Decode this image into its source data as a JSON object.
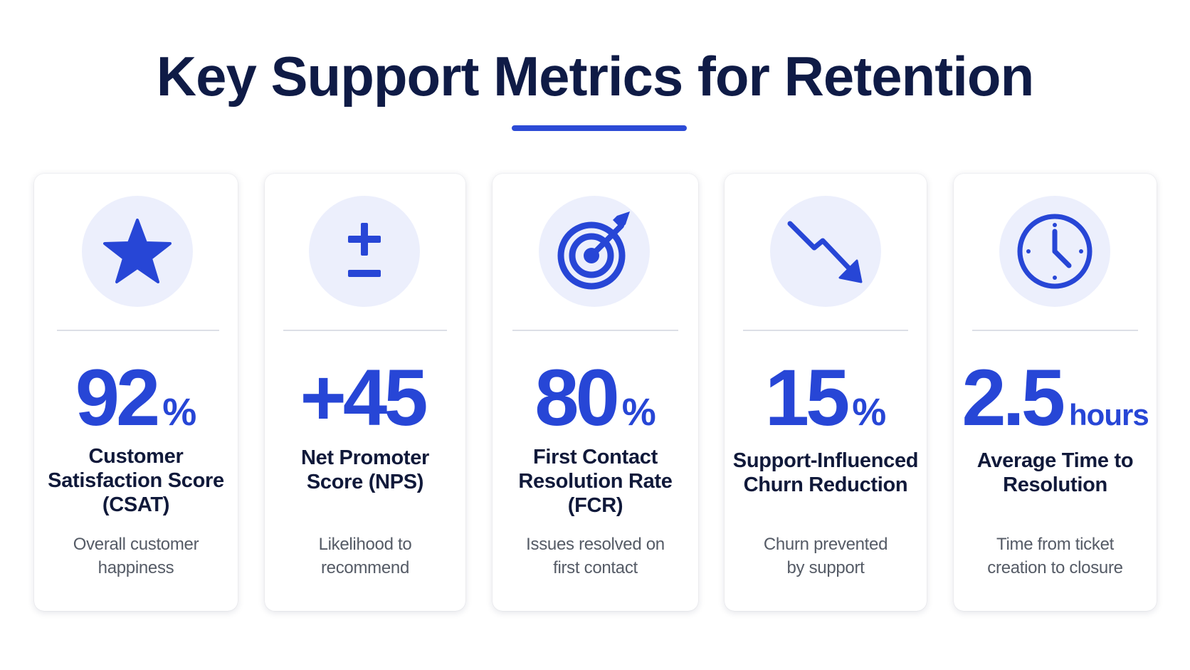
{
  "title": "Key Support Metrics for Retention",
  "colors": {
    "title": "#0f1b46",
    "accent": "#2746d6",
    "icon_bg": "#eceffc",
    "label": "#10193a",
    "description": "#555b66"
  },
  "cards": [
    {
      "icon": "star-icon",
      "value": "92",
      "unit": "%",
      "label": "Customer Satisfaction Score (CSAT)",
      "description": "Overall customer happiness"
    },
    {
      "icon": "plus-minus-icon",
      "value": "+45",
      "unit": "",
      "label": "Net Promoter Score (NPS)",
      "description": "Likelihood to recommend"
    },
    {
      "icon": "target-icon",
      "value": "80",
      "unit": "%",
      "label": "First Contact Resolution Rate (FCR)",
      "description": "Issues resolved on first contact"
    },
    {
      "icon": "trend-down-icon",
      "value": "15",
      "unit": "%",
      "label": "Support-Influenced Churn Reduction",
      "description": "Churn prevented by support"
    },
    {
      "icon": "clock-icon",
      "value": "2.5",
      "unit": "hours",
      "label": "Average Time to Resolution",
      "description": "Time from ticket creation to closure"
    }
  ]
}
